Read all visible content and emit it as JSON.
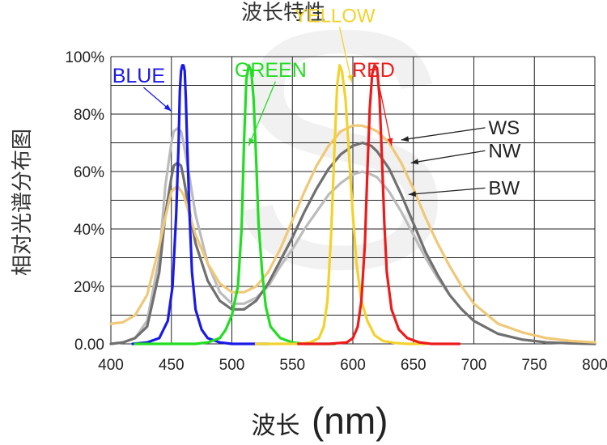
{
  "chart_data": {
    "type": "line",
    "title": "波长特性",
    "xlabel_cn": "波长",
    "xlabel_unit": "(nm)",
    "ylabel": "相对光谱分布图",
    "xlim": [
      400,
      800
    ],
    "ylim": [
      0,
      100
    ],
    "grid": true,
    "x_ticks": [
      "400",
      "450",
      "500",
      "550",
      "600",
      "650",
      "700",
      "750",
      "800"
    ],
    "y_ticks": [
      "0.00",
      "20%",
      "40%",
      "60%",
      "80%",
      "100%"
    ],
    "series": [
      {
        "name": "BLUE",
        "color": "#1a1ae6",
        "x": [
          418,
          430,
          440,
          447,
          451,
          454,
          456,
          457,
          458,
          459,
          460,
          461,
          462,
          463,
          465,
          467,
          470,
          475,
          480,
          490,
          500,
          510,
          520,
          530
        ],
        "y": [
          0,
          0.5,
          2,
          8,
          20,
          45,
          70,
          88,
          95,
          97,
          97,
          95,
          85,
          70,
          45,
          25,
          12,
          5,
          2,
          0.5,
          0,
          0,
          0,
          0
        ]
      },
      {
        "name": "GREEN",
        "color": "#22dd22",
        "x": [
          420,
          440,
          460,
          470,
          480,
          490,
          495,
          500,
          505,
          508,
          510,
          512,
          514,
          516,
          518,
          520,
          522,
          525,
          528,
          532,
          540,
          550,
          560,
          570,
          585
        ],
        "y": [
          0,
          0,
          0,
          0,
          0.5,
          2,
          5,
          10,
          20,
          40,
          70,
          92,
          97,
          95,
          85,
          65,
          42,
          25,
          13,
          6,
          2,
          0.5,
          0,
          0,
          0
        ]
      },
      {
        "name": "YELLOW",
        "color": "#f2d22e",
        "x": [
          520,
          540,
          555,
          565,
          572,
          576,
          579,
          582,
          585,
          587,
          589,
          591,
          594,
          597,
          600,
          603,
          607,
          612,
          618,
          625,
          635,
          645,
          660
        ],
        "y": [
          0,
          0,
          0,
          0.5,
          2,
          6,
          15,
          38,
          70,
          90,
          97,
          95,
          85,
          65,
          45,
          28,
          15,
          8,
          3,
          1,
          0.3,
          0,
          0
        ]
      },
      {
        "name": "RED",
        "color": "#ec1c1c",
        "x": [
          555,
          580,
          595,
          600,
          604,
          607,
          610,
          612,
          614,
          616,
          618,
          620,
          622,
          624,
          626,
          628,
          632,
          638,
          645,
          655,
          665,
          675,
          688
        ],
        "y": [
          0,
          0,
          0.5,
          2,
          6,
          15,
          35,
          60,
          82,
          94,
          97,
          96,
          86,
          65,
          42,
          25,
          12,
          5,
          2,
          0.5,
          0,
          0,
          0
        ]
      },
      {
        "name": "WS",
        "color": "#efc878",
        "x": [
          400,
          410,
          420,
          430,
          440,
          445,
          450,
          455,
          460,
          465,
          470,
          480,
          490,
          500,
          510,
          520,
          530,
          540,
          550,
          560,
          570,
          580,
          590,
          600,
          607,
          615,
          620,
          630,
          640,
          650,
          660,
          670,
          680,
          690,
          700,
          720,
          740,
          760,
          780,
          800
        ],
        "y": [
          7,
          7.5,
          10,
          17,
          34,
          44,
          53,
          55,
          52,
          45,
          38,
          28,
          21,
          18,
          18,
          20,
          25,
          33,
          43,
          53,
          62,
          69,
          74,
          76,
          76,
          75,
          74,
          70,
          63,
          54,
          44,
          35,
          27,
          20,
          14,
          7,
          4,
          2,
          1,
          0.5
        ]
      },
      {
        "name": "NW",
        "color": "#707070",
        "x": [
          400,
          410,
          420,
          430,
          440,
          445,
          450,
          452,
          455,
          458,
          460,
          465,
          470,
          480,
          490,
          500,
          510,
          520,
          530,
          540,
          550,
          560,
          570,
          580,
          590,
          600,
          608,
          615,
          620,
          630,
          640,
          650,
          660,
          670,
          680,
          690,
          700,
          720,
          740,
          760,
          780,
          800
        ],
        "y": [
          0,
          0.5,
          2,
          6,
          25,
          45,
          58,
          62,
          63,
          62,
          58,
          46,
          35,
          22,
          15,
          12,
          12,
          15,
          21,
          29,
          37,
          46,
          54,
          61,
          66,
          69,
          70,
          69,
          67,
          61,
          52,
          42,
          32,
          24,
          17,
          12,
          8,
          3.5,
          1.5,
          0.5,
          0.2,
          0
        ]
      },
      {
        "name": "BW",
        "color": "#bcbcbc",
        "x": [
          400,
          410,
          420,
          430,
          440,
          445,
          450,
          452,
          455,
          458,
          460,
          465,
          470,
          480,
          490,
          500,
          510,
          520,
          530,
          540,
          550,
          560,
          570,
          580,
          590,
          600,
          608,
          615,
          620,
          630,
          640,
          650,
          660,
          670,
          680,
          690,
          700,
          720,
          740,
          760,
          780,
          800
        ],
        "y": [
          0,
          0.5,
          2,
          8,
          30,
          55,
          70,
          74,
          75,
          74,
          70,
          58,
          45,
          28,
          18,
          14,
          14,
          16,
          20,
          27,
          33,
          40,
          46,
          52,
          56,
          59,
          60,
          59,
          58,
          53,
          46,
          38,
          30,
          23,
          17,
          12,
          8,
          3.5,
          1.5,
          0.5,
          0.2,
          0
        ]
      }
    ],
    "annotations": [
      {
        "label": "BLUE",
        "color": "#1a1ae6",
        "text_x": 423,
        "text_y": 91,
        "point_x": 450,
        "point_y": 81
      },
      {
        "label": "GREEN",
        "color": "#22dd22",
        "text_x": 532,
        "text_y": 93,
        "point_x": 514,
        "point_y": 69
      },
      {
        "label": "YELLOW",
        "color": "#f2d22e",
        "text_x": 585,
        "text_y": 112,
        "point_x": 599,
        "point_y": 91
      },
      {
        "label": "RED",
        "color": "#ec1c1c",
        "text_x": 617,
        "text_y": 93,
        "point_x": 632,
        "point_y": 69
      },
      {
        "label": "WS",
        "color": "#222222",
        "text_x": 712,
        "text_y": 73,
        "point_x": 640,
        "point_y": 71
      },
      {
        "label": "NW",
        "color": "#222222",
        "text_x": 712,
        "text_y": 65,
        "point_x": 648,
        "point_y": 63
      },
      {
        "label": "BW",
        "color": "#222222",
        "text_x": 712,
        "text_y": 52,
        "point_x": 646,
        "point_y": 52
      }
    ],
    "colors": {
      "grid": "#222222",
      "tick_text": "#222222",
      "watermark": "#f1f1f1"
    },
    "watermark_text": "S"
  }
}
